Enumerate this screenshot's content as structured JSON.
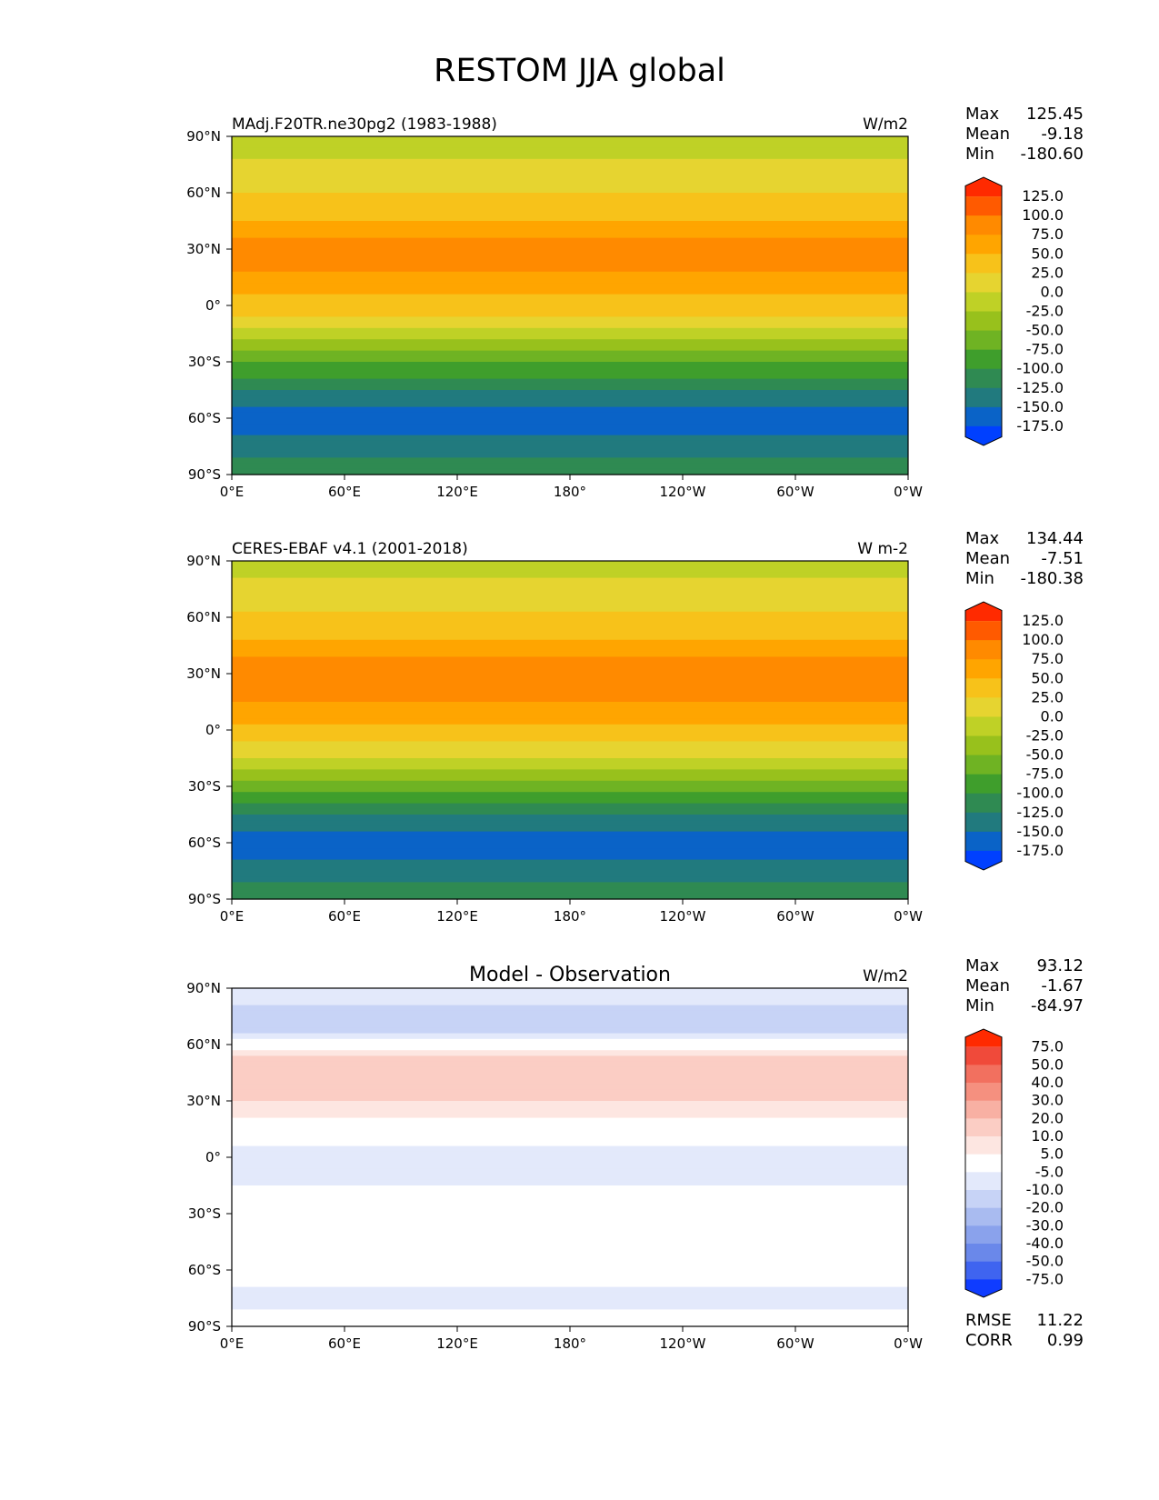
{
  "title": "RESTOM JJA global",
  "chart_data": [
    {
      "type": "heatmap",
      "panel": "model",
      "title_left": "MAdj.F20TR.ne30pg2 (1983-1988)",
      "title_right": "W/m2",
      "title_center": "",
      "xlim": [
        0,
        360
      ],
      "ylim": [
        -90,
        90
      ],
      "x_ticks": [
        "0°E",
        "60°E",
        "120°E",
        "180°",
        "120°W",
        "60°W",
        "0°W"
      ],
      "y_ticks": [
        "90°N",
        "60°N",
        "30°N",
        "0°",
        "30°S",
        "60°S",
        "90°S"
      ],
      "stats": {
        "Max": "125.45",
        "Mean": "-9.18",
        "Min": "-180.60"
      },
      "colorbar": {
        "levels": [
          "125.0",
          "100.0",
          "75.0",
          "50.0",
          "25.0",
          "0.0",
          "-25.0",
          "-50.0",
          "-75.0",
          "-100.0",
          "-125.0",
          "-150.0",
          "-175.0"
        ],
        "colors": [
          "#ff2a00",
          "#ff5a00",
          "#ff8a00",
          "#ffa500",
          "#f7c21a",
          "#e6d430",
          "#bfd126",
          "#98c11c",
          "#6fb323",
          "#3f9e2c",
          "#2f8a52",
          "#217a7e",
          "#0a63c7",
          "#0040ff"
        ]
      },
      "field_profile": {
        "lat": [
          90,
          70,
          50,
          30,
          15,
          0,
          -15,
          -30,
          -45,
          -60,
          -75,
          -90
        ],
        "value": [
          -20,
          10,
          40,
          90,
          70,
          40,
          -10,
          -70,
          -130,
          -165,
          -140,
          -110
        ]
      }
    },
    {
      "type": "heatmap",
      "panel": "observation",
      "title_left": "CERES-EBAF v4.1 (2001-2018)",
      "title_right": "W m-2",
      "title_center": "",
      "xlim": [
        0,
        360
      ],
      "ylim": [
        -90,
        90
      ],
      "x_ticks": [
        "0°E",
        "60°E",
        "120°E",
        "180°",
        "120°W",
        "60°W",
        "0°W"
      ],
      "y_ticks": [
        "90°N",
        "60°N",
        "30°N",
        "0°",
        "30°S",
        "60°S",
        "90°S"
      ],
      "stats": {
        "Max": "134.44",
        "Mean": "-7.51",
        "Min": "-180.38"
      },
      "colorbar": {
        "levels": [
          "125.0",
          "100.0",
          "75.0",
          "50.0",
          "25.0",
          "0.0",
          "-25.0",
          "-50.0",
          "-75.0",
          "-100.0",
          "-125.0",
          "-150.0",
          "-175.0"
        ],
        "colors": [
          "#ff2a00",
          "#ff5a00",
          "#ff8a00",
          "#ffa500",
          "#f7c21a",
          "#e6d430",
          "#bfd126",
          "#98c11c",
          "#6fb323",
          "#3f9e2c",
          "#2f8a52",
          "#217a7e",
          "#0a63c7",
          "#0040ff"
        ]
      },
      "field_profile": {
        "lat": [
          90,
          70,
          50,
          30,
          15,
          0,
          -15,
          -30,
          -45,
          -60,
          -75,
          -90
        ],
        "value": [
          -15,
          15,
          45,
          95,
          75,
          45,
          -5,
          -65,
          -125,
          -165,
          -140,
          -110
        ]
      }
    },
    {
      "type": "heatmap",
      "panel": "difference",
      "title_left": "",
      "title_right": "W/m2",
      "title_center": "Model - Observation",
      "xlim": [
        0,
        360
      ],
      "ylim": [
        -90,
        90
      ],
      "x_ticks": [
        "0°E",
        "60°E",
        "120°E",
        "180°",
        "120°W",
        "60°W",
        "0°W"
      ],
      "y_ticks": [
        "90°N",
        "60°N",
        "30°N",
        "0°",
        "30°S",
        "60°S",
        "90°S"
      ],
      "stats": {
        "Max": "93.12",
        "Mean": "-1.67",
        "Min": "-84.97"
      },
      "fit": {
        "RMSE": "11.22",
        "CORR": "0.99"
      },
      "colorbar": {
        "levels": [
          "75.0",
          "50.0",
          "40.0",
          "30.0",
          "20.0",
          "10.0",
          "5.0",
          "-5.0",
          "-10.0",
          "-20.0",
          "-30.0",
          "-40.0",
          "-50.0",
          "-75.0"
        ],
        "colors": [
          "#ff2a00",
          "#f04a3a",
          "#f2705f",
          "#f5907f",
          "#f8b0a3",
          "#fbcdc4",
          "#fde6e1",
          "#ffffff",
          "#e3e9fb",
          "#c7d3f6",
          "#a9bbf0",
          "#8aa2ec",
          "#6a88ea",
          "#3f64f0",
          "#0f3cff"
        ]
      },
      "field_profile": {
        "lat": [
          90,
          70,
          50,
          30,
          15,
          0,
          -15,
          -30,
          -45,
          -60,
          -75,
          -90
        ],
        "value": [
          -5,
          -15,
          15,
          10,
          0,
          -10,
          -5,
          0,
          5,
          0,
          -10,
          0
        ]
      }
    }
  ]
}
